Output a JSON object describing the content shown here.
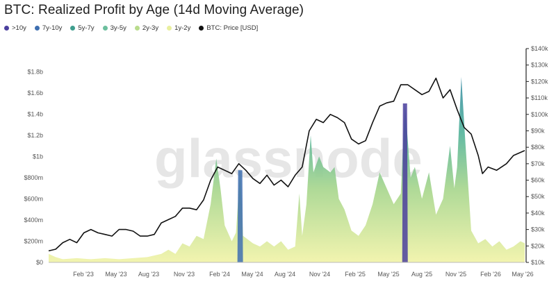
{
  "title": "BTC: Realized Profit by Age (14d Moving Average)",
  "watermark": "glassnode",
  "legend": [
    {
      "label": ">10y",
      "color": "#4b3f9e"
    },
    {
      "label": "7y-10y",
      "color": "#3e6fb0"
    },
    {
      "label": "5y-7y",
      "color": "#3f9e8e"
    },
    {
      "label": "3y-5y",
      "color": "#6cbf9e"
    },
    {
      "label": "2y-3y",
      "color": "#b9dc8c"
    },
    {
      "label": "1y-2y",
      "color": "#e9ef9e"
    },
    {
      "label": "BTC: Price [USD]",
      "color": "#111111"
    }
  ],
  "chart_data": {
    "type": "area",
    "title": "BTC: Realized Profit by Age (14d Moving Average)",
    "x_ticks": [
      "Feb '23",
      "May '23",
      "Aug '23",
      "Nov '23",
      "Feb '24",
      "May '24",
      "Aug '24",
      "Nov '24",
      "Feb '25",
      "May '25",
      "Aug '25",
      "Nov '25",
      "Feb '26",
      "May '26"
    ],
    "y_left_ticks": [
      "$0",
      "$200m",
      "$400m",
      "$600m",
      "$800m",
      "$1b",
      "$1.2b",
      "$1.4b",
      "$1.6b",
      "$1.8b"
    ],
    "y_left_range": [
      0,
      1.9
    ],
    "y_right_ticks": [
      "$10k",
      "$20k",
      "$30k",
      "$40k",
      "$50k",
      "$60k",
      "$70k",
      "$80k",
      "$90k",
      "$100k",
      "$110k",
      "$120k",
      "$130k",
      "$140k"
    ],
    "y_right_range": [
      10,
      140
    ],
    "x_range": [
      2023.0,
      2026.38
    ],
    "profit_total": [
      [
        2023.0,
        0.08
      ],
      [
        2023.05,
        0.05
      ],
      [
        2023.1,
        0.03
      ],
      [
        2023.2,
        0.04
      ],
      [
        2023.3,
        0.03
      ],
      [
        2023.4,
        0.04
      ],
      [
        2023.5,
        0.03
      ],
      [
        2023.6,
        0.04
      ],
      [
        2023.7,
        0.05
      ],
      [
        2023.8,
        0.08
      ],
      [
        2023.85,
        0.12
      ],
      [
        2023.9,
        0.08
      ],
      [
        2023.95,
        0.18
      ],
      [
        2024.0,
        0.15
      ],
      [
        2024.05,
        0.25
      ],
      [
        2024.1,
        0.22
      ],
      [
        2024.15,
        0.55
      ],
      [
        2024.19,
        0.98
      ],
      [
        2024.22,
        0.7
      ],
      [
        2024.25,
        0.35
      ],
      [
        2024.3,
        0.2
      ],
      [
        2024.33,
        0.28
      ],
      [
        2024.36,
        0.87
      ],
      [
        2024.38,
        0.25
      ],
      [
        2024.45,
        0.18
      ],
      [
        2024.5,
        0.15
      ],
      [
        2024.55,
        0.2
      ],
      [
        2024.6,
        0.15
      ],
      [
        2024.65,
        0.2
      ],
      [
        2024.7,
        0.12
      ],
      [
        2024.75,
        0.15
      ],
      [
        2024.78,
        0.65
      ],
      [
        2024.8,
        0.25
      ],
      [
        2024.83,
        0.55
      ],
      [
        2024.86,
        1.2
      ],
      [
        2024.88,
        0.85
      ],
      [
        2024.92,
        1.0
      ],
      [
        2024.95,
        0.9
      ],
      [
        2025.0,
        0.85
      ],
      [
        2025.03,
        0.9
      ],
      [
        2025.06,
        0.6
      ],
      [
        2025.1,
        0.5
      ],
      [
        2025.15,
        0.3
      ],
      [
        2025.2,
        0.25
      ],
      [
        2025.25,
        0.35
      ],
      [
        2025.3,
        0.55
      ],
      [
        2025.35,
        0.85
      ],
      [
        2025.4,
        0.7
      ],
      [
        2025.45,
        0.55
      ],
      [
        2025.5,
        0.65
      ],
      [
        2025.53,
        1.5
      ],
      [
        2025.57,
        0.8
      ],
      [
        2025.6,
        0.9
      ],
      [
        2025.65,
        0.6
      ],
      [
        2025.7,
        0.85
      ],
      [
        2025.75,
        0.45
      ],
      [
        2025.8,
        0.6
      ],
      [
        2025.85,
        1.1
      ],
      [
        2025.88,
        0.7
      ],
      [
        2025.9,
        0.9
      ],
      [
        2025.93,
        1.75
      ],
      [
        2025.96,
        1.1
      ],
      [
        2026.0,
        0.3
      ],
      [
        2026.05,
        0.18
      ],
      [
        2026.1,
        0.22
      ],
      [
        2026.15,
        0.15
      ],
      [
        2026.2,
        0.2
      ],
      [
        2026.25,
        0.12
      ],
      [
        2026.3,
        0.15
      ],
      [
        2026.35,
        0.2
      ],
      [
        2026.38,
        0.18
      ]
    ],
    "spikes": [
      {
        "x": 2024.36,
        "y": 0.87,
        "cohort": "7y-10y"
      },
      {
        "x": 2025.53,
        "y": 1.5,
        "cohort": ">10y"
      }
    ],
    "price": [
      [
        2023.0,
        17
      ],
      [
        2023.05,
        18
      ],
      [
        2023.1,
        22
      ],
      [
        2023.15,
        24
      ],
      [
        2023.2,
        22
      ],
      [
        2023.25,
        28
      ],
      [
        2023.3,
        30
      ],
      [
        2023.35,
        28
      ],
      [
        2023.4,
        27
      ],
      [
        2023.45,
        26
      ],
      [
        2023.5,
        30
      ],
      [
        2023.55,
        30
      ],
      [
        2023.6,
        29
      ],
      [
        2023.65,
        26
      ],
      [
        2023.7,
        26
      ],
      [
        2023.75,
        27
      ],
      [
        2023.8,
        34
      ],
      [
        2023.85,
        36
      ],
      [
        2023.9,
        38
      ],
      [
        2023.95,
        43
      ],
      [
        2024.0,
        43
      ],
      [
        2024.05,
        42
      ],
      [
        2024.1,
        48
      ],
      [
        2024.15,
        60
      ],
      [
        2024.2,
        68
      ],
      [
        2024.25,
        66
      ],
      [
        2024.3,
        64
      ],
      [
        2024.35,
        70
      ],
      [
        2024.4,
        66
      ],
      [
        2024.45,
        61
      ],
      [
        2024.5,
        58
      ],
      [
        2024.55,
        63
      ],
      [
        2024.6,
        57
      ],
      [
        2024.65,
        60
      ],
      [
        2024.7,
        56
      ],
      [
        2024.75,
        63
      ],
      [
        2024.8,
        68
      ],
      [
        2024.85,
        90
      ],
      [
        2024.9,
        97
      ],
      [
        2024.95,
        95
      ],
      [
        2025.0,
        100
      ],
      [
        2025.05,
        98
      ],
      [
        2025.1,
        95
      ],
      [
        2025.15,
        85
      ],
      [
        2025.2,
        82
      ],
      [
        2025.25,
        84
      ],
      [
        2025.3,
        95
      ],
      [
        2025.35,
        105
      ],
      [
        2025.4,
        107
      ],
      [
        2025.45,
        108
      ],
      [
        2025.5,
        118
      ],
      [
        2025.55,
        118
      ],
      [
        2025.6,
        115
      ],
      [
        2025.65,
        112
      ],
      [
        2025.7,
        114
      ],
      [
        2025.75,
        122
      ],
      [
        2025.8,
        110
      ],
      [
        2025.85,
        115
      ],
      [
        2025.9,
        103
      ],
      [
        2025.95,
        92
      ],
      [
        2026.0,
        88
      ],
      [
        2026.05,
        75
      ],
      [
        2026.08,
        64
      ],
      [
        2026.12,
        68
      ],
      [
        2026.18,
        66
      ],
      [
        2026.25,
        70
      ],
      [
        2026.3,
        75
      ],
      [
        2026.38,
        78
      ]
    ]
  }
}
